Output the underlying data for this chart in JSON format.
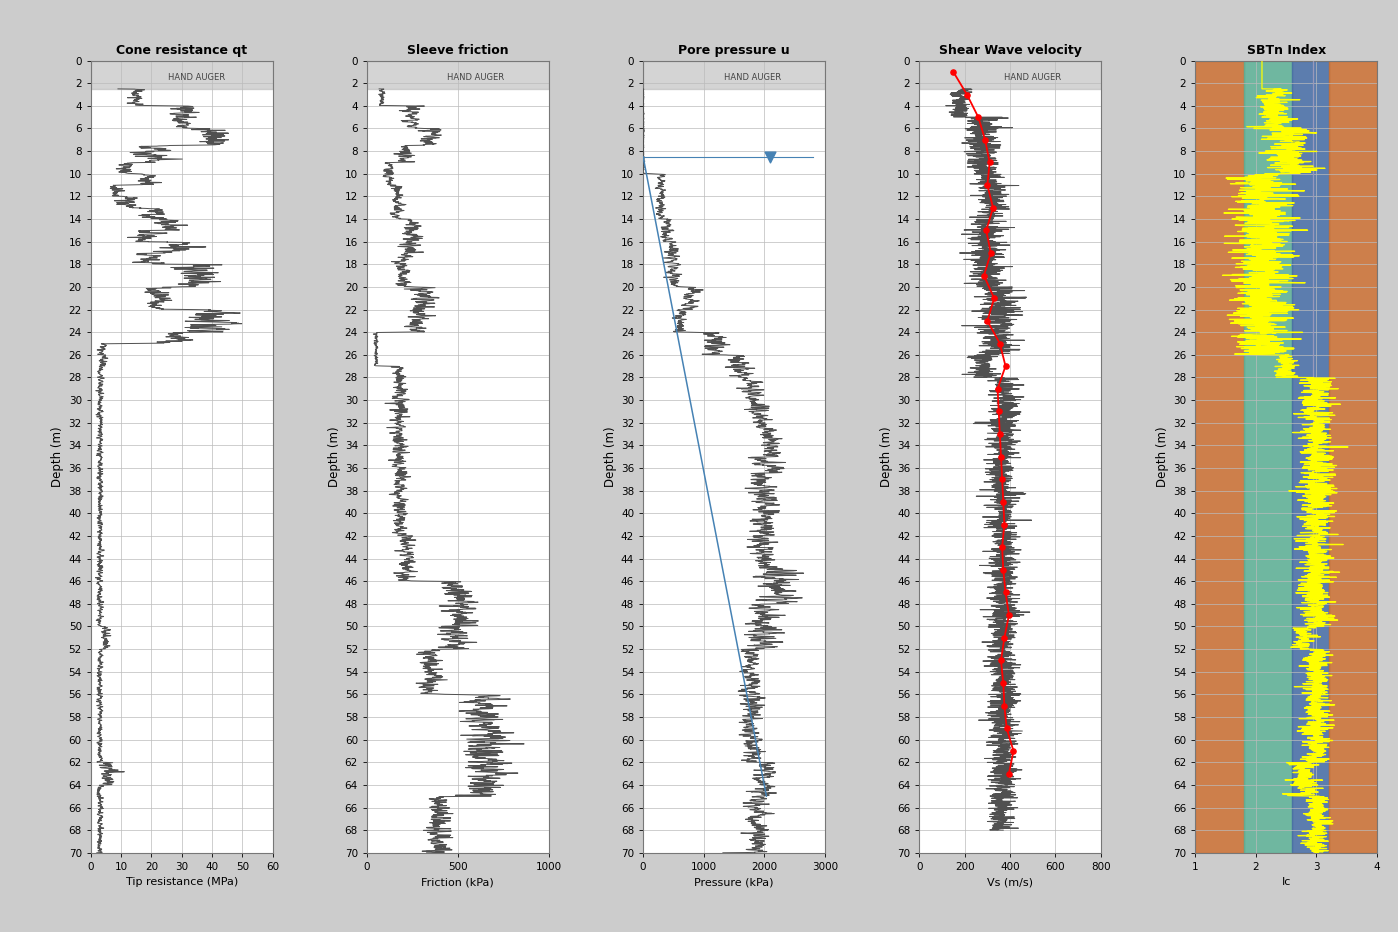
{
  "depth_min": 0,
  "depth_max": 70,
  "depth_ticks": [
    0,
    2,
    4,
    6,
    8,
    10,
    12,
    14,
    16,
    18,
    20,
    22,
    24,
    26,
    28,
    30,
    32,
    34,
    36,
    38,
    40,
    42,
    44,
    46,
    48,
    50,
    52,
    54,
    56,
    58,
    60,
    62,
    64,
    66,
    68,
    70
  ],
  "hand_auger_depth": 2.5,
  "panel1": {
    "title": "Cone resistance qt",
    "xlabel": "Tip resistance (MPa)",
    "xlim": [
      0,
      60
    ],
    "xticks": [
      0,
      10,
      20,
      30,
      40,
      50,
      60
    ]
  },
  "panel2": {
    "title": "Sleeve friction",
    "xlabel": "Friction (kPa)",
    "xlim": [
      0,
      1000
    ],
    "xticks": [
      0,
      500,
      1000
    ]
  },
  "panel3": {
    "title": "Pore pressure u",
    "xlabel": "Pressure (kPa)",
    "xlim": [
      0,
      3000
    ],
    "xticks": [
      0,
      1000,
      2000,
      3000
    ],
    "water_table_depth": 8.5
  },
  "panel4": {
    "title": "Shear Wave velocity",
    "xlabel": "Vs (m/s)",
    "xlim": [
      0,
      800
    ],
    "xticks": [
      0,
      200,
      400,
      600,
      800
    ]
  },
  "panel5": {
    "title": "SBTn Index",
    "xlabel": "Ic",
    "xlim": [
      1,
      4
    ],
    "xticks": [
      1,
      2,
      3,
      4
    ],
    "zone_colors": [
      "#C87137",
      "#5FAF96",
      "#4A6FA5",
      "#C87137"
    ],
    "zone_boundaries": [
      1.0,
      1.8,
      2.6,
      3.2,
      4.0
    ],
    "vline_x": 2.95
  },
  "outer_bg": "#d0d0d0",
  "panel_bg": "#ffffff",
  "grid_color": "#bbbbbb",
  "data_color": "#505050",
  "hand_auger_color": "#b8b8b8"
}
